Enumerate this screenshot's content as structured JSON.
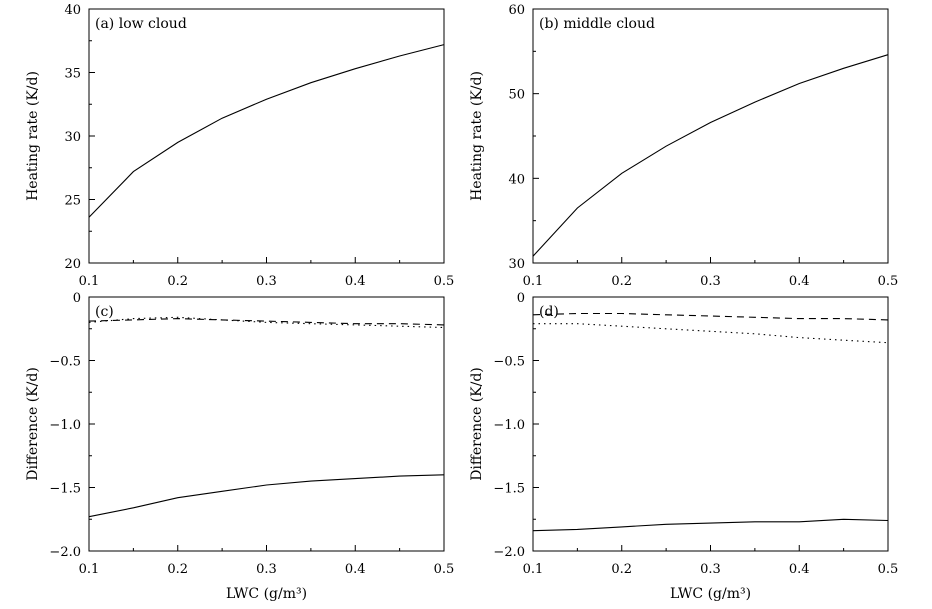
{
  "chart_data": [
    {
      "type": "line",
      "panel_label": "(a)",
      "title": "low cloud",
      "xlabel": "LWC (g/m³)",
      "ylabel": "Heating rate (K/d)",
      "xlim": [
        0.1,
        0.5
      ],
      "ylim": [
        20,
        40
      ],
      "xticks": [
        "0.1",
        "0.2",
        "0.3",
        "0.4",
        "0.5"
      ],
      "yticks": [
        "20",
        "25",
        "30",
        "35",
        "40"
      ],
      "x": [
        0.1,
        0.15,
        0.2,
        0.25,
        0.3,
        0.35,
        0.4,
        0.45,
        0.5
      ],
      "series": [
        {
          "name": "solid",
          "style": "solid",
          "values": [
            23.6,
            27.2,
            29.5,
            31.4,
            32.9,
            34.2,
            35.3,
            36.3,
            37.2
          ]
        }
      ]
    },
    {
      "type": "line",
      "panel_label": "(b)",
      "title": "middle cloud",
      "xlabel": "LWC (g/m³)",
      "ylabel": "Heating rate (K/d)",
      "xlim": [
        0.1,
        0.5
      ],
      "ylim": [
        30,
        60
      ],
      "xticks": [
        "0.1",
        "0.2",
        "0.3",
        "0.4",
        "0.5"
      ],
      "yticks": [
        "30",
        "40",
        "50",
        "60"
      ],
      "x": [
        0.1,
        0.15,
        0.2,
        0.25,
        0.3,
        0.35,
        0.4,
        0.45,
        0.5
      ],
      "series": [
        {
          "name": "solid",
          "style": "solid",
          "values": [
            30.8,
            36.5,
            40.6,
            43.8,
            46.6,
            49.0,
            51.2,
            53.0,
            54.6
          ]
        }
      ]
    },
    {
      "type": "line",
      "panel_label": "(c)",
      "title": "",
      "xlabel": "LWC (g/m³)",
      "ylabel": "Difference (K/d)",
      "xlim": [
        0.1,
        0.5
      ],
      "ylim": [
        -2.0,
        0
      ],
      "xticks": [
        "0.1",
        "0.2",
        "0.3",
        "0.4",
        "0.5"
      ],
      "yticks": [
        "−2.0",
        "−1.5",
        "−1.0",
        "−0.5",
        "0"
      ],
      "x": [
        0.1,
        0.15,
        0.2,
        0.25,
        0.3,
        0.35,
        0.4,
        0.45,
        0.5
      ],
      "series": [
        {
          "name": "solid",
          "style": "solid",
          "values": [
            -1.73,
            -1.66,
            -1.58,
            -1.53,
            -1.48,
            -1.45,
            -1.43,
            -1.41,
            -1.4
          ]
        },
        {
          "name": "dashed",
          "style": "dashed",
          "values": [
            -0.19,
            -0.18,
            -0.17,
            -0.18,
            -0.19,
            -0.2,
            -0.21,
            -0.21,
            -0.22
          ]
        },
        {
          "name": "dotted",
          "style": "dotted",
          "values": [
            -0.2,
            -0.17,
            -0.16,
            -0.18,
            -0.2,
            -0.21,
            -0.22,
            -0.23,
            -0.24
          ]
        }
      ]
    },
    {
      "type": "line",
      "panel_label": "(d)",
      "title": "",
      "xlabel": "LWC (g/m³)",
      "ylabel": "Difference (K/d)",
      "xlim": [
        0.1,
        0.5
      ],
      "ylim": [
        -2.0,
        0
      ],
      "xticks": [
        "0.1",
        "0.2",
        "0.3",
        "0.4",
        "0.5"
      ],
      "yticks": [
        "−2.0",
        "−1.5",
        "−1.0",
        "−0.5",
        "0"
      ],
      "x": [
        0.1,
        0.15,
        0.2,
        0.25,
        0.3,
        0.35,
        0.4,
        0.45,
        0.5
      ],
      "series": [
        {
          "name": "solid",
          "style": "solid",
          "values": [
            -1.84,
            -1.83,
            -1.81,
            -1.79,
            -1.78,
            -1.77,
            -1.77,
            -1.75,
            -1.76
          ]
        },
        {
          "name": "dashed",
          "style": "dashed",
          "values": [
            -0.14,
            -0.13,
            -0.13,
            -0.14,
            -0.15,
            -0.16,
            -0.17,
            -0.17,
            -0.18
          ]
        },
        {
          "name": "dotted",
          "style": "dotted",
          "values": [
            -0.21,
            -0.21,
            -0.23,
            -0.25,
            -0.27,
            -0.29,
            -0.32,
            -0.34,
            -0.36
          ]
        }
      ]
    }
  ]
}
